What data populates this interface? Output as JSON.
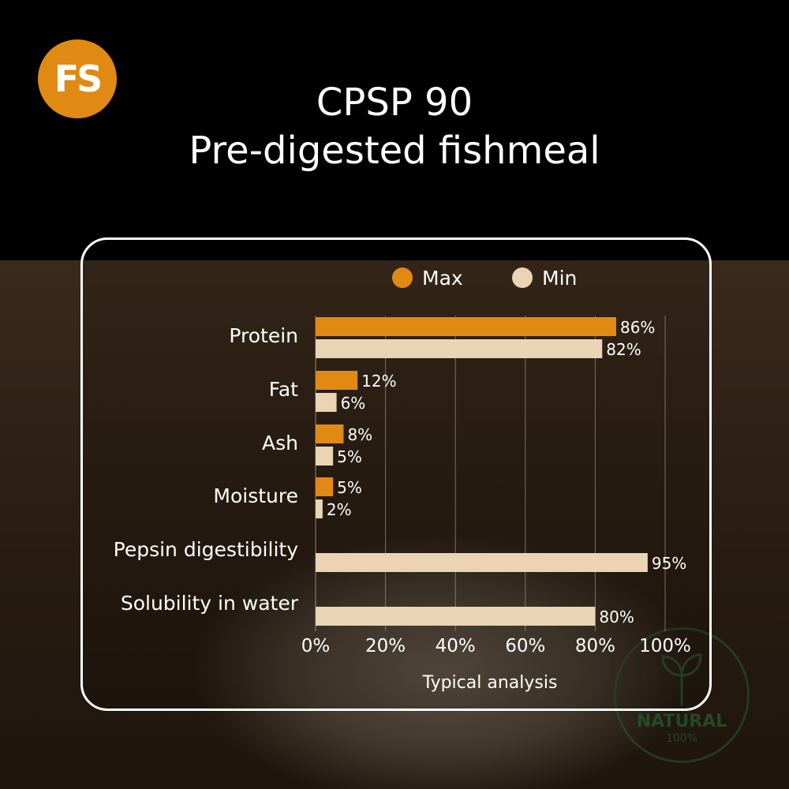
{
  "logo": {
    "text": "FS",
    "color": "#e08a14"
  },
  "title": {
    "line1": "CPSP 90",
    "line2": "Pre-digested fishmeal"
  },
  "badge": {
    "line1": "NATURAL",
    "line2": "100%",
    "icon": "leaf-icon"
  },
  "colors": {
    "max": "#e08a14",
    "min": "#ead4b4",
    "text": "#ffffff",
    "grid": "#bfb3a4"
  },
  "chart_data": {
    "type": "bar",
    "orientation": "horizontal",
    "title": "",
    "xlabel": "Typical analysis",
    "ylabel": "",
    "xlim": [
      0,
      100
    ],
    "xticks": [
      0,
      20,
      40,
      60,
      80,
      100
    ],
    "tick_suffix": "%",
    "grid": true,
    "legend_position": "top",
    "categories": [
      "Protein",
      "Fat",
      "Ash",
      "Moisture",
      "Pepsin digestibility",
      "Solubility in water"
    ],
    "series": [
      {
        "name": "Max",
        "values": [
          86,
          12,
          8,
          5,
          null,
          null
        ]
      },
      {
        "name": "Min",
        "values": [
          82,
          6,
          5,
          2,
          95,
          80
        ]
      }
    ]
  }
}
